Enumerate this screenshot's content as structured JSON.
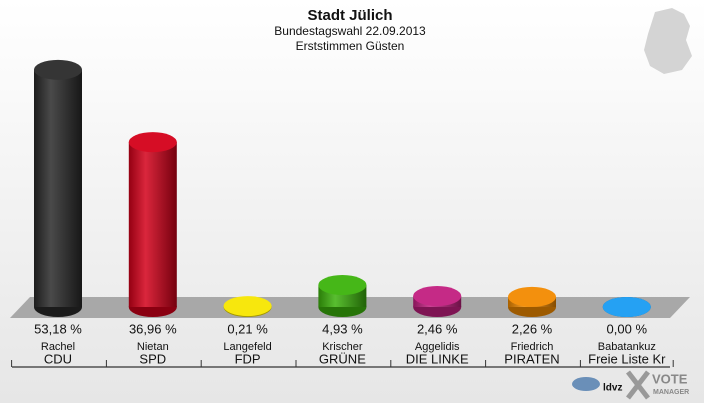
{
  "chart_data": {
    "type": "bar3d",
    "title": "Stadt Jülich",
    "subtitle": "Bundestagswahl 22.09.2013",
    "subtitle2": "Erststimmen Güsten",
    "categories": [
      "Rachel",
      "Nietan",
      "Langefeld",
      "Krischer",
      "Aggelidis",
      "Friedrich",
      "Babatankuz"
    ],
    "parties": [
      "CDU",
      "SPD",
      "FDP",
      "GRÜNE",
      "DIE LINKE",
      "PIRATEN",
      "Freie Liste Kr"
    ],
    "values": [
      53.18,
      36.96,
      0.21,
      4.93,
      2.46,
      2.26,
      0.0
    ],
    "value_labels": [
      "53,18 %",
      "36,96 %",
      "0,21 %",
      "4,93 %",
      "2,46 %",
      "2,26 %",
      "0,00 %"
    ],
    "colors": [
      "#2a2a2a",
      "#d4001a",
      "#f7e600",
      "#3cb30c",
      "#c21f80",
      "#f28a00",
      "#1a9cf2"
    ],
    "logo": [
      "VOTE",
      "MANAGER"
    ]
  }
}
